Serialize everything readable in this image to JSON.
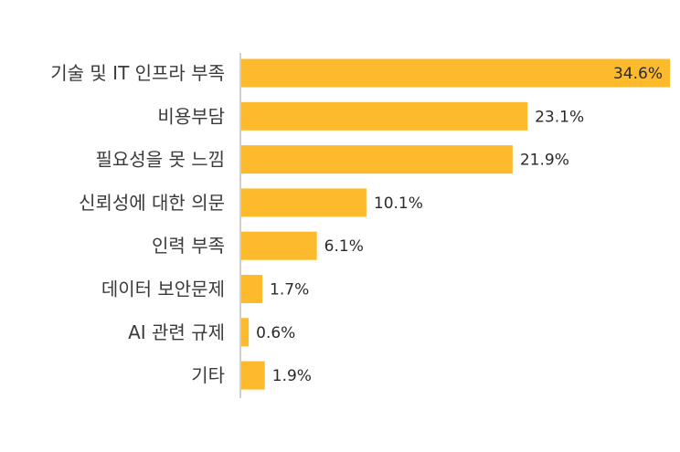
{
  "chart_data": {
    "type": "bar",
    "orientation": "horizontal",
    "categories": [
      "기술 및 IT 인프라 부족",
      "비용부담",
      "필요성을 못 느낌",
      "신뢰성에 대한 의문",
      "인력 부족",
      "데이터 보안문제",
      "AI 관련 규제",
      "기타"
    ],
    "values": [
      34.6,
      23.1,
      21.9,
      10.1,
      6.1,
      1.7,
      0.6,
      1.9
    ],
    "value_labels": [
      "34.6%",
      "23.1%",
      "21.9%",
      "10.1%",
      "6.1%",
      "1.7%",
      "0.6%",
      "1.9%"
    ],
    "unit": "%",
    "xlim": [
      0,
      34.6
    ],
    "grid": false,
    "legend": "none",
    "colors": {
      "bar": "#FDBA2C",
      "axis": "#bfbfbf",
      "category_text": "#3a3a3a",
      "value_text": "#2a2a2a"
    }
  }
}
